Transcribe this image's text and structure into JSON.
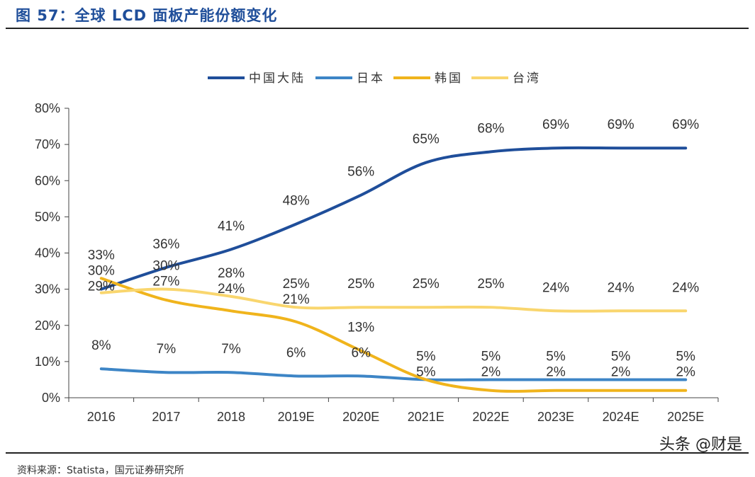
{
  "header": {
    "title": "图 57：全球 LCD 面板产能份额变化"
  },
  "footer": {
    "source": "资料来源：Statista，国元证券研究所",
    "watermark": "头条 @财是"
  },
  "chart_data": {
    "type": "line",
    "title": "",
    "xlabel": "",
    "ylabel": "",
    "categories": [
      "2016",
      "2017",
      "2018",
      "2019E",
      "2020E",
      "2021E",
      "2022E",
      "2023E",
      "2024E",
      "2025E"
    ],
    "ylim": [
      0,
      80
    ],
    "yticks": [
      "0%",
      "10%",
      "20%",
      "30%",
      "40%",
      "50%",
      "60%",
      "70%",
      "80%"
    ],
    "grid": false,
    "legend": "top",
    "series": [
      {
        "name": "中国大陆",
        "color": "#1f4e9a",
        "values": [
          30,
          36,
          41,
          48,
          56,
          65,
          68,
          69,
          69,
          69
        ],
        "labels": [
          "30%",
          "36%",
          "41%",
          "48%",
          "56%",
          "65%",
          "68%",
          "69%",
          "69%",
          "69%"
        ]
      },
      {
        "name": "日本",
        "color": "#3d85c6",
        "values": [
          8,
          7,
          7,
          6,
          6,
          5,
          5,
          5,
          5,
          5
        ],
        "labels": [
          "8%",
          "7%",
          "7%",
          "6%",
          "6%",
          "5%",
          "5%",
          "5%",
          "5%",
          "5%"
        ]
      },
      {
        "name": "韩国",
        "color": "#f0b41c",
        "values": [
          33,
          27,
          24,
          21,
          13,
          5,
          2,
          2,
          2,
          2
        ],
        "labels": [
          "33%",
          "27%",
          "24%",
          "21%",
          "13%",
          "5%",
          "2%",
          "2%",
          "2%",
          "2%"
        ]
      },
      {
        "name": "台湾",
        "color": "#f9d66e",
        "values": [
          29,
          30,
          28,
          25,
          25,
          25,
          25,
          24,
          24,
          24
        ],
        "labels": [
          "29%",
          "30%",
          "28%",
          "25%",
          "25%",
          "25%",
          "25%",
          "24%",
          "24%",
          "24%"
        ]
      }
    ]
  }
}
